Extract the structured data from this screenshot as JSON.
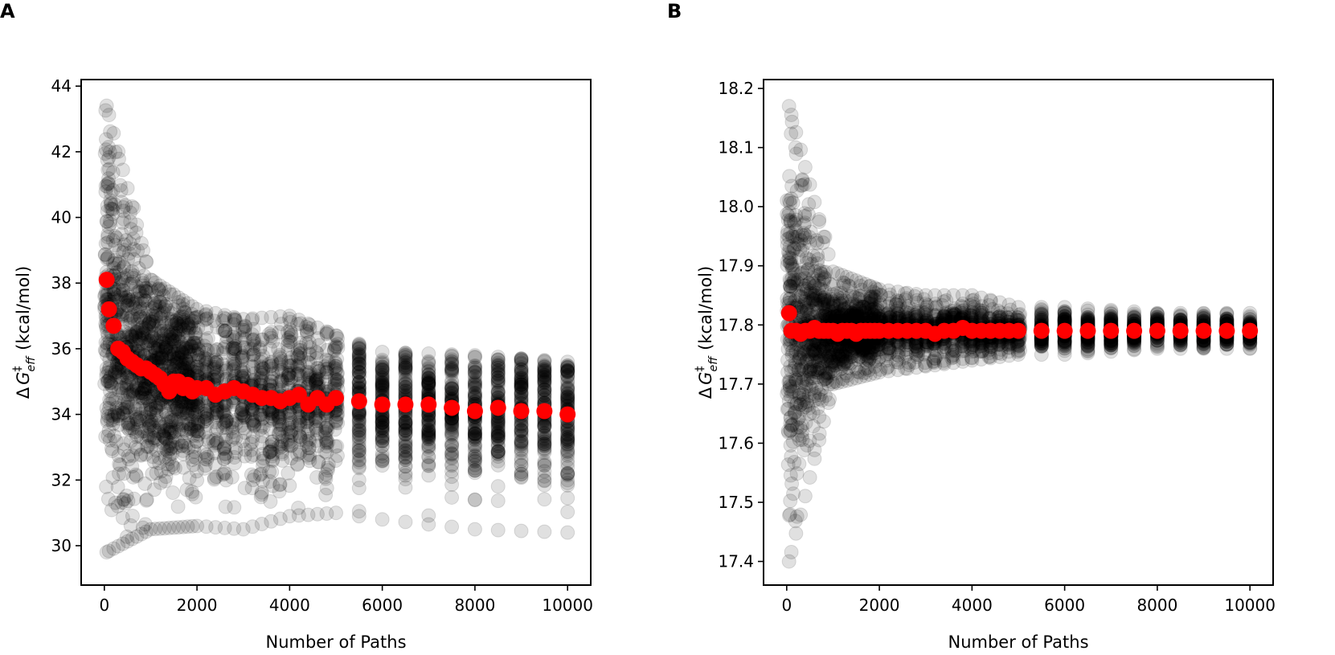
{
  "chart_data": [
    {
      "panel_label": "A",
      "type": "scatter",
      "xlabel": "Number of Paths",
      "ylabel_math": "ΔG‡eff",
      "ylabel_unit": "(kcal/mol)",
      "xlim": [
        -500,
        10500
      ],
      "ylim": [
        28.8,
        44.2
      ],
      "xticks": [
        0,
        2000,
        4000,
        6000,
        8000,
        10000
      ],
      "xtick_labels": [
        "0",
        "2000",
        "4000",
        "6000",
        "8000",
        "10000"
      ],
      "yticks": [
        30,
        32,
        34,
        36,
        38,
        40,
        42,
        44
      ],
      "ytick_labels": [
        "30",
        "32",
        "34",
        "36",
        "38",
        "40",
        "42",
        "44"
      ],
      "grid": false,
      "legend": "none",
      "series": [
        {
          "role": "individual estimates",
          "color": "#000000",
          "opacity": 0.12,
          "spread_description": "cloud of individual estimates, wide at small N and narrowing toward the mean",
          "range_by_x": [
            {
              "x": 50,
              "min": 29.8,
              "max": 43.4
            },
            {
              "x": 1000,
              "min": 30.5,
              "max": 38.1
            },
            {
              "x": 2000,
              "min": 30.6,
              "max": 37.2
            },
            {
              "x": 3000,
              "min": 30.5,
              "max": 36.9
            },
            {
              "x": 4000,
              "min": 30.9,
              "max": 37.0
            },
            {
              "x": 5000,
              "min": 31.0,
              "max": 36.4
            },
            {
              "x": 6000,
              "min": 30.8,
              "max": 35.9
            },
            {
              "x": 8000,
              "min": 30.5,
              "max": 35.8
            },
            {
              "x": 10000,
              "min": 30.4,
              "max": 35.6
            }
          ]
        },
        {
          "role": "mean",
          "color": "#ff0000",
          "x": [
            50,
            100,
            200,
            300,
            400,
            500,
            600,
            700,
            800,
            900,
            1000,
            1100,
            1200,
            1300,
            1400,
            1500,
            1600,
            1700,
            1800,
            1900,
            2000,
            2200,
            2400,
            2600,
            2800,
            3000,
            3200,
            3400,
            3600,
            3800,
            4000,
            4200,
            4400,
            4600,
            4800,
            5000,
            5500,
            6000,
            6500,
            7000,
            7500,
            8000,
            8500,
            9000,
            9500,
            10000
          ],
          "y": [
            38.1,
            37.2,
            36.7,
            36.0,
            35.9,
            35.7,
            35.6,
            35.5,
            35.4,
            35.4,
            35.3,
            35.2,
            35.1,
            34.9,
            34.7,
            35.0,
            35.0,
            34.8,
            34.9,
            34.7,
            34.8,
            34.8,
            34.6,
            34.7,
            34.8,
            34.7,
            34.6,
            34.5,
            34.5,
            34.4,
            34.5,
            34.6,
            34.3,
            34.5,
            34.3,
            34.5,
            34.4,
            34.3,
            34.3,
            34.3,
            34.2,
            34.1,
            34.2,
            34.1,
            34.1,
            34.0
          ]
        }
      ]
    },
    {
      "panel_label": "B",
      "type": "scatter",
      "xlabel": "Number of Paths",
      "ylabel_math": "ΔG‡eff",
      "ylabel_unit": "(kcal/mol)",
      "xlim": [
        -500,
        10500
      ],
      "ylim": [
        17.36,
        18.215
      ],
      "xticks": [
        0,
        2000,
        4000,
        6000,
        8000,
        10000
      ],
      "xtick_labels": [
        "0",
        "2000",
        "4000",
        "6000",
        "8000",
        "10000"
      ],
      "yticks": [
        17.4,
        17.5,
        17.6,
        17.7,
        17.8,
        17.9,
        18.0,
        18.1,
        18.2
      ],
      "ytick_labels": [
        "17.4",
        "17.5",
        "17.6",
        "17.7",
        "17.8",
        "17.9",
        "18.0",
        "18.1",
        "18.2"
      ],
      "grid": false,
      "legend": "none",
      "series": [
        {
          "role": "individual estimates",
          "color": "#000000",
          "opacity": 0.12,
          "spread_description": "cloud of individual estimates, wide at small N and narrowing toward the mean",
          "range_by_x": [
            {
              "x": 50,
              "min": 17.4,
              "max": 18.17
            },
            {
              "x": 1000,
              "min": 17.7,
              "max": 17.89
            },
            {
              "x": 2000,
              "min": 17.72,
              "max": 17.86
            },
            {
              "x": 3000,
              "min": 17.73,
              "max": 17.85
            },
            {
              "x": 4000,
              "min": 17.74,
              "max": 17.85
            },
            {
              "x": 5000,
              "min": 17.75,
              "max": 17.83
            },
            {
              "x": 6000,
              "min": 17.75,
              "max": 17.83
            },
            {
              "x": 8000,
              "min": 17.76,
              "max": 17.82
            },
            {
              "x": 10000,
              "min": 17.76,
              "max": 17.82
            }
          ]
        },
        {
          "role": "mean",
          "color": "#ff0000",
          "x": [
            50,
            100,
            200,
            300,
            400,
            500,
            600,
            700,
            800,
            900,
            1000,
            1100,
            1200,
            1300,
            1400,
            1500,
            1600,
            1700,
            1800,
            1900,
            2000,
            2200,
            2400,
            2600,
            2800,
            3000,
            3200,
            3400,
            3600,
            3800,
            4000,
            4200,
            4400,
            4600,
            4800,
            5000,
            5500,
            6000,
            6500,
            7000,
            7500,
            8000,
            8500,
            9000,
            9500,
            10000
          ],
          "y": [
            17.82,
            17.79,
            17.79,
            17.785,
            17.79,
            17.79,
            17.795,
            17.79,
            17.79,
            17.79,
            17.79,
            17.785,
            17.79,
            17.79,
            17.79,
            17.785,
            17.79,
            17.79,
            17.79,
            17.79,
            17.79,
            17.79,
            17.79,
            17.79,
            17.79,
            17.79,
            17.785,
            17.79,
            17.79,
            17.795,
            17.79,
            17.79,
            17.79,
            17.79,
            17.79,
            17.79,
            17.79,
            17.79,
            17.79,
            17.79,
            17.79,
            17.79,
            17.79,
            17.79,
            17.79,
            17.79
          ]
        }
      ]
    }
  ]
}
